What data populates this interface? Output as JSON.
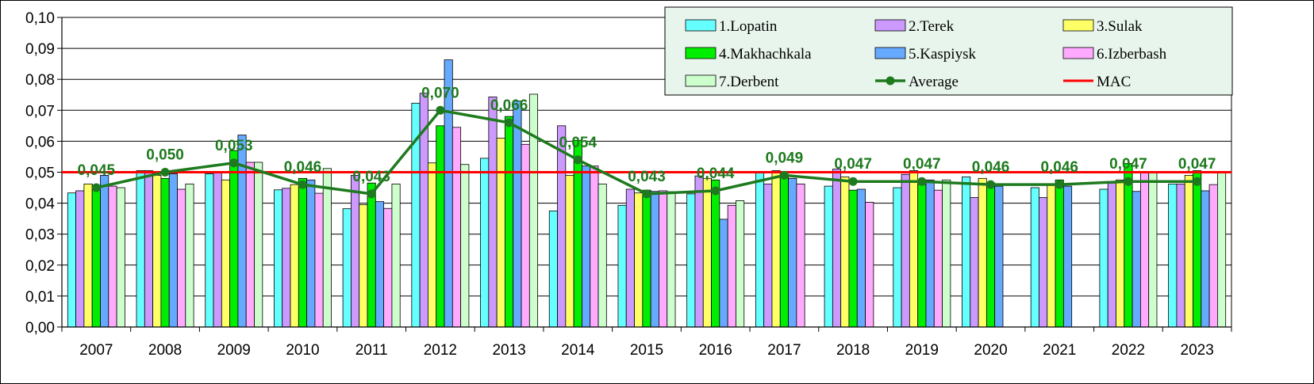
{
  "chart_data": {
    "type": "bar",
    "title": "",
    "xlabel": "",
    "ylabel": "",
    "ylim": [
      0,
      0.1
    ],
    "y_ticks": [
      "0,00",
      "0,01",
      "0,02",
      "0,03",
      "0,04",
      "0,05",
      "0,06",
      "0,07",
      "0,08",
      "0,09",
      "0,10"
    ],
    "categories": [
      "2007",
      "2008",
      "2009",
      "2010",
      "2011",
      "2012",
      "2013",
      "2014",
      "2015",
      "2016",
      "2017",
      "2018",
      "2019",
      "2020",
      "2021",
      "2022",
      "2023"
    ],
    "series": [
      {
        "name": "1.Lopatin",
        "color": "#66ffff",
        "values": [
          0.0433,
          0.0505,
          0.0495,
          0.0443,
          0.0382,
          0.0723,
          0.0545,
          0.0375,
          0.0393,
          0.043,
          0.05,
          0.0455,
          0.045,
          0.0485,
          0.045,
          0.0445,
          0.0462
        ]
      },
      {
        "name": "2.Terek",
        "color": "#cc99ff",
        "values": [
          0.044,
          0.0505,
          0.05,
          0.0448,
          0.049,
          0.0755,
          0.0743,
          0.065,
          0.0445,
          0.0488,
          0.0462,
          0.051,
          0.0493,
          0.0418,
          0.0418,
          0.0465,
          0.0462
        ]
      },
      {
        "name": "3.Sulak",
        "color": "#ffff66",
        "values": [
          0.0462,
          0.049,
          0.0475,
          0.046,
          0.0395,
          0.053,
          0.061,
          0.049,
          0.0433,
          0.048,
          0.0505,
          0.0485,
          0.0505,
          0.048,
          0.0462,
          0.0475,
          0.049
        ]
      },
      {
        "name": "4.Makhachkala",
        "color": "#00ee00",
        "values": [
          0.0458,
          0.048,
          0.057,
          0.048,
          0.0465,
          0.065,
          0.068,
          0.0603,
          0.0442,
          0.0475,
          0.049,
          0.0442,
          0.046,
          0.0465,
          0.0475,
          0.0528,
          0.0505
        ]
      },
      {
        "name": "5.Kaspiysk",
        "color": "#66aaff",
        "values": [
          0.049,
          0.0495,
          0.062,
          0.0475,
          0.0405,
          0.0863,
          0.073,
          0.052,
          0.0438,
          0.0348,
          0.048,
          0.0445,
          0.0475,
          0.0455,
          0.0455,
          0.0438,
          0.044
        ]
      },
      {
        "name": "6.Izberbash",
        "color": "#ffaaff",
        "values": [
          0.0455,
          0.0445,
          0.0532,
          0.0432,
          0.0383,
          0.0645,
          0.059,
          0.052,
          0.044,
          0.0393,
          0.0462,
          0.0403,
          0.0442,
          0.0,
          0.0,
          0.05,
          0.046
        ]
      },
      {
        "name": "7.Derbent",
        "color": "#ccffcc",
        "values": [
          0.045,
          0.0462,
          0.0532,
          0.0512,
          0.0462,
          0.0525,
          0.0752,
          0.0462,
          0.0437,
          0.0408,
          0.0,
          0.0,
          0.0475,
          0.0,
          0.0,
          0.05,
          0.05
        ]
      }
    ],
    "average": {
      "name": "Average",
      "color": "#1e7a1e",
      "values": [
        0.045,
        0.05,
        0.053,
        0.046,
        0.043,
        0.07,
        0.066,
        0.054,
        0.043,
        0.044,
        0.049,
        0.047,
        0.047,
        0.046,
        0.046,
        0.047,
        0.047
      ],
      "labels": [
        "0,045",
        "0,050",
        "0,053",
        "0,046",
        "0,043",
        "0,070",
        "0,066",
        "0,054",
        "0,043",
        "0,044",
        "0,049",
        "0,047",
        "0,047",
        "0,046",
        "0,046",
        "0,047",
        "0,047"
      ]
    },
    "reference_line": {
      "name": "MAC",
      "value": 0.05,
      "color": "#ff0000"
    },
    "gridlines": true,
    "legend": {
      "position": "top-right",
      "background": "#e8f5ec"
    }
  }
}
